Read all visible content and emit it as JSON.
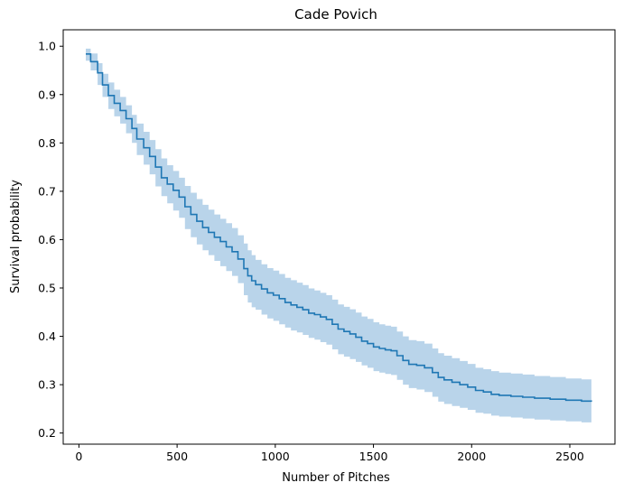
{
  "chart_data": {
    "type": "line",
    "title": "Cade Povich",
    "xlabel": "Number of Pitches",
    "ylabel": "Survival probability",
    "xlim": [
      -80,
      2730
    ],
    "ylim": [
      0.177,
      1.034
    ],
    "xticks": [
      0,
      500,
      1000,
      1500,
      2000,
      2500
    ],
    "yticks": [
      0.2,
      0.3,
      0.4,
      0.5,
      0.6,
      0.7,
      0.8,
      0.9,
      1.0
    ],
    "ytick_labels": [
      "0.2",
      "0.3",
      "0.4",
      "0.5",
      "0.6",
      "0.7",
      "0.8",
      "0.9",
      "1.0"
    ],
    "grid": false,
    "legend": "none",
    "line_color": "#1f77b4",
    "band_color": "#b9d4ea",
    "series": [
      {
        "x": [
          35,
          60,
          95,
          120,
          150,
          180,
          210,
          240,
          270,
          295,
          330,
          360,
          390,
          420,
          450,
          480,
          510,
          540,
          570,
          600,
          630,
          660,
          690,
          720,
          750,
          780,
          810,
          840,
          860,
          880,
          900,
          930,
          960,
          990,
          1020,
          1050,
          1080,
          1110,
          1140,
          1170,
          1200,
          1230,
          1260,
          1290,
          1320,
          1350,
          1380,
          1410,
          1440,
          1470,
          1500,
          1530,
          1560,
          1590,
          1620,
          1650,
          1680,
          1720,
          1760,
          1800,
          1830,
          1860,
          1900,
          1940,
          1980,
          2020,
          2060,
          2100,
          2140,
          2200,
          2260,
          2320,
          2400,
          2480,
          2560,
          2610
        ],
        "y": [
          0.984,
          0.968,
          0.945,
          0.92,
          0.898,
          0.882,
          0.867,
          0.85,
          0.83,
          0.808,
          0.79,
          0.772,
          0.75,
          0.728,
          0.715,
          0.702,
          0.688,
          0.668,
          0.652,
          0.638,
          0.625,
          0.615,
          0.605,
          0.596,
          0.585,
          0.575,
          0.56,
          0.54,
          0.525,
          0.515,
          0.507,
          0.498,
          0.49,
          0.485,
          0.478,
          0.47,
          0.465,
          0.46,
          0.455,
          0.448,
          0.445,
          0.44,
          0.435,
          0.425,
          0.415,
          0.41,
          0.405,
          0.398,
          0.39,
          0.385,
          0.378,
          0.375,
          0.372,
          0.37,
          0.36,
          0.35,
          0.342,
          0.34,
          0.335,
          0.325,
          0.315,
          0.31,
          0.305,
          0.3,
          0.295,
          0.288,
          0.285,
          0.28,
          0.278,
          0.276,
          0.274,
          0.272,
          0.27,
          0.268,
          0.266,
          0.265
        ],
        "lower": [
          0.97,
          0.95,
          0.92,
          0.895,
          0.87,
          0.855,
          0.84,
          0.82,
          0.8,
          0.775,
          0.755,
          0.735,
          0.71,
          0.69,
          0.675,
          0.66,
          0.645,
          0.622,
          0.605,
          0.59,
          0.578,
          0.568,
          0.556,
          0.545,
          0.535,
          0.525,
          0.51,
          0.485,
          0.47,
          0.46,
          0.455,
          0.445,
          0.437,
          0.432,
          0.425,
          0.418,
          0.412,
          0.408,
          0.403,
          0.397,
          0.393,
          0.388,
          0.383,
          0.373,
          0.363,
          0.358,
          0.353,
          0.347,
          0.34,
          0.335,
          0.328,
          0.325,
          0.322,
          0.32,
          0.31,
          0.3,
          0.293,
          0.29,
          0.285,
          0.275,
          0.265,
          0.26,
          0.256,
          0.252,
          0.248,
          0.242,
          0.24,
          0.236,
          0.234,
          0.232,
          0.23,
          0.228,
          0.226,
          0.224,
          0.222,
          0.22
        ],
        "upper": [
          0.995,
          0.985,
          0.965,
          0.943,
          0.925,
          0.91,
          0.895,
          0.878,
          0.858,
          0.84,
          0.823,
          0.806,
          0.787,
          0.768,
          0.754,
          0.742,
          0.728,
          0.711,
          0.697,
          0.684,
          0.672,
          0.662,
          0.652,
          0.643,
          0.634,
          0.624,
          0.609,
          0.592,
          0.578,
          0.568,
          0.558,
          0.549,
          0.541,
          0.536,
          0.529,
          0.521,
          0.516,
          0.511,
          0.506,
          0.499,
          0.495,
          0.49,
          0.485,
          0.476,
          0.466,
          0.461,
          0.456,
          0.449,
          0.441,
          0.436,
          0.429,
          0.425,
          0.422,
          0.42,
          0.41,
          0.4,
          0.392,
          0.39,
          0.385,
          0.375,
          0.365,
          0.36,
          0.355,
          0.349,
          0.343,
          0.335,
          0.332,
          0.328,
          0.325,
          0.323,
          0.321,
          0.318,
          0.316,
          0.313,
          0.311,
          0.31
        ]
      }
    ]
  }
}
